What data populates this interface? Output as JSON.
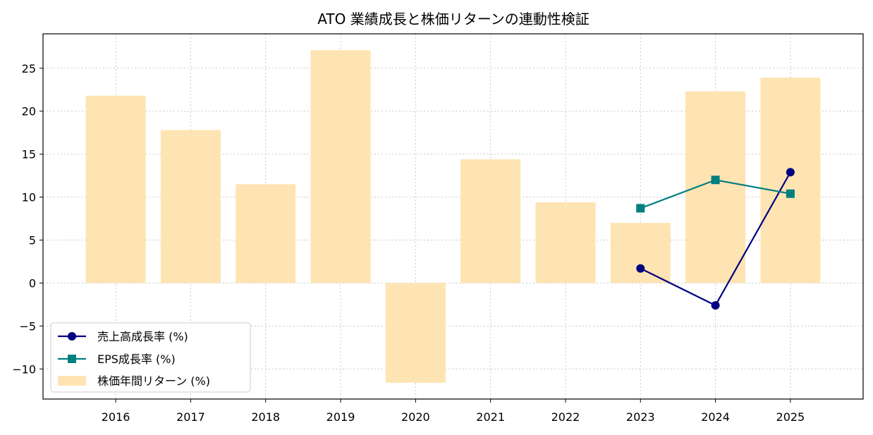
{
  "chart_data": {
    "type": "bar",
    "title": "ATO 業績成長と株価リターンの連動性検証",
    "xlabel": "",
    "ylabel": "",
    "categories": [
      "2016",
      "2017",
      "2018",
      "2019",
      "2020",
      "2021",
      "2022",
      "2023",
      "2024",
      "2025"
    ],
    "ylim": [
      -13.5,
      29.0
    ],
    "yticks": [
      -10,
      -5,
      0,
      5,
      10,
      15,
      20,
      25
    ],
    "ytick_labels": [
      "−10",
      "−5",
      "0",
      "5",
      "10",
      "15",
      "20",
      "25"
    ],
    "grid": true,
    "legend_position": "lower-left",
    "bars": {
      "name": "株価年間リターン (%)",
      "color": "#ffe4b3",
      "values": [
        21.8,
        17.8,
        11.5,
        27.1,
        -11.6,
        14.4,
        9.4,
        7.0,
        22.3,
        23.9
      ]
    },
    "series": [
      {
        "name": "売上高成長率 (%)",
        "color": "#00007f",
        "marker": "circle",
        "values": [
          null,
          null,
          null,
          null,
          null,
          null,
          null,
          1.7,
          -2.6,
          12.9
        ]
      },
      {
        "name": "EPS成長率 (%)",
        "color": "#007f7f",
        "marker": "square",
        "values": [
          null,
          null,
          null,
          null,
          null,
          null,
          null,
          8.7,
          12.0,
          10.4
        ]
      }
    ]
  }
}
